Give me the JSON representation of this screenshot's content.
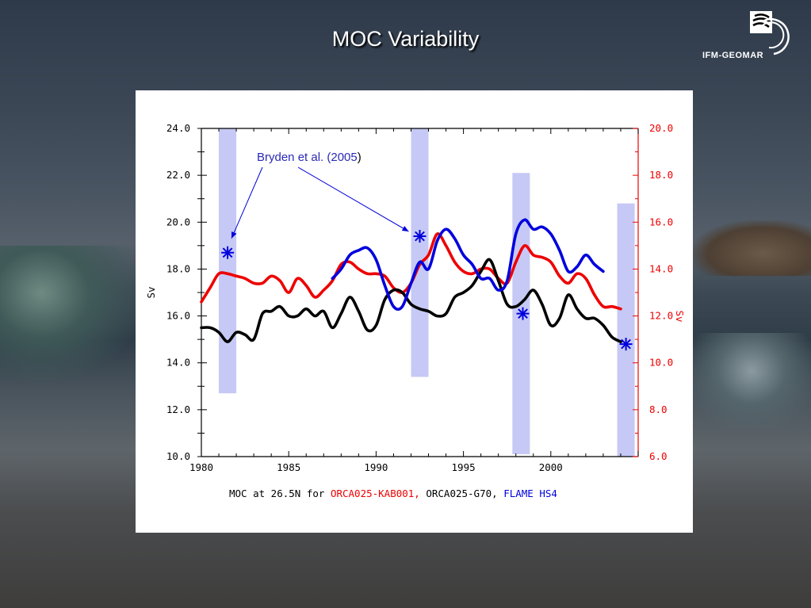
{
  "slide": {
    "title": "MOC Variability"
  },
  "logo": {
    "text": "IFM-GEOMAR"
  },
  "chart_data": {
    "type": "line",
    "title": "",
    "annotation": {
      "text": "Bryden et al. (2005",
      "close": ")"
    },
    "caption": {
      "prefix": "MOC at 26.5N for ",
      "red": "ORCA025-KAB001,",
      "mid": " ORCA025-G70,",
      "blue": " FLAME HS4"
    },
    "xlabel": "",
    "ylabel": "Sv",
    "y2label": "Sv",
    "xlim": [
      1980,
      2005
    ],
    "ylim": [
      10,
      24
    ],
    "y2lim": [
      6,
      20
    ],
    "x_ticks": [
      "1980",
      "1985",
      "1990",
      "1995",
      "2000"
    ],
    "y_ticks": [
      "10.0",
      "12.0",
      "14.0",
      "16.0",
      "18.0",
      "20.0",
      "22.0",
      "24.0"
    ],
    "y2_ticks": [
      "6.0",
      "8.0",
      "10.0",
      "12.0",
      "14.0",
      "16.0",
      "18.0",
      "20.0"
    ],
    "colors": {
      "red": "#ee0000",
      "black": "#000000",
      "blue": "#0000dd",
      "bar": "#c6c9f5",
      "axis2": "#ee0000"
    },
    "bars": [
      {
        "x0": 1981,
        "x1": 1982,
        "y0": 12.7,
        "y1": 24
      },
      {
        "x0": 1992,
        "x1": 1993,
        "y0": 13.4,
        "y1": 24
      },
      {
        "x0": 1997.8,
        "x1": 1998.8,
        "y0": 10.1,
        "y1": 22.1
      },
      {
        "x0": 2003.8,
        "x1": 2004.8,
        "y0": 10,
        "y1": 20.8
      }
    ],
    "markers": [
      {
        "x": 1981.5,
        "y": 18.7
      },
      {
        "x": 1992.5,
        "y": 19.4
      },
      {
        "x": 1998.4,
        "y": 16.1
      },
      {
        "x": 2004.3,
        "y": 14.8
      }
    ],
    "series": [
      {
        "axis": "right",
        "color": "red",
        "x": [
          1980,
          1980.5,
          1981,
          1981.5,
          1982,
          1982.5,
          1983,
          1983.5,
          1984,
          1984.5,
          1985,
          1985.5,
          1986,
          1986.5,
          1987,
          1987.5,
          1988,
          1988.5,
          1989,
          1989.5,
          1990,
          1990.5,
          1991,
          1991.5,
          1992,
          1992.5,
          1993,
          1993.5,
          1994,
          1994.5,
          1995,
          1995.5,
          1996,
          1996.5,
          1997,
          1997.5,
          1998,
          1998.5,
          1999,
          1999.5,
          2000,
          2000.5,
          2001,
          2001.5,
          2002,
          2002.5,
          2003,
          2003.5,
          2004
        ],
        "values": [
          12.6,
          13.2,
          13.8,
          13.8,
          13.7,
          13.6,
          13.4,
          13.4,
          13.7,
          13.5,
          13.0,
          13.6,
          13.3,
          12.8,
          13.1,
          13.5,
          14.2,
          14.3,
          14.0,
          13.8,
          13.8,
          13.7,
          13.2,
          13.0,
          13.4,
          14.2,
          14.6,
          15.5,
          15.0,
          14.3,
          13.9,
          13.8,
          14.0,
          14.0,
          13.6,
          13.4,
          14.3,
          15.0,
          14.6,
          14.5,
          14.3,
          13.7,
          13.4,
          13.8,
          13.6,
          12.9,
          12.4,
          12.4,
          12.3
        ]
      },
      {
        "axis": "left",
        "color": "black",
        "x": [
          1980,
          1980.5,
          1981,
          1981.5,
          1982,
          1982.5,
          1983,
          1983.5,
          1984,
          1984.5,
          1985,
          1985.5,
          1986,
          1986.5,
          1987,
          1987.5,
          1988,
          1988.5,
          1989,
          1989.5,
          1990,
          1990.5,
          1991,
          1991.5,
          1992,
          1992.5,
          1993,
          1993.5,
          1994,
          1994.5,
          1995,
          1995.5,
          1996,
          1996.5,
          1997,
          1997.5,
          1998,
          1998.5,
          1999,
          1999.5,
          2000,
          2000.5,
          2001,
          2001.5,
          2002,
          2002.5,
          2003,
          2003.5,
          2004
        ],
        "values": [
          15.5,
          15.5,
          15.3,
          14.9,
          15.3,
          15.2,
          15.0,
          16.1,
          16.2,
          16.4,
          16.0,
          16.0,
          16.3,
          16.0,
          16.2,
          15.5,
          16.1,
          16.8,
          16.2,
          15.4,
          15.6,
          16.7,
          17.1,
          17.0,
          16.5,
          16.3,
          16.2,
          16.0,
          16.1,
          16.8,
          17.0,
          17.3,
          17.9,
          18.4,
          17.5,
          16.5,
          16.4,
          16.7,
          17.1,
          16.5,
          15.6,
          15.9,
          16.9,
          16.3,
          15.9,
          15.9,
          15.6,
          15.1,
          14.9
        ]
      },
      {
        "axis": "left",
        "color": "blue",
        "x": [
          1987.5,
          1988,
          1988.5,
          1989,
          1989.5,
          1990,
          1990.5,
          1991,
          1991.5,
          1992,
          1992.5,
          1993,
          1993.5,
          1994,
          1994.5,
          1995,
          1995.5,
          1996,
          1996.5,
          1997,
          1997.5,
          1998,
          1998.5,
          1999,
          1999.5,
          2000,
          2000.5,
          2001,
          2001.5,
          2002,
          2002.5,
          2003
        ],
        "values": [
          17.6,
          18.0,
          18.6,
          18.8,
          18.9,
          18.4,
          17.3,
          16.4,
          16.4,
          17.4,
          18.3,
          18.0,
          19.2,
          19.7,
          19.3,
          18.6,
          18.2,
          17.6,
          17.6,
          17.1,
          17.5,
          19.5,
          20.1,
          19.7,
          19.8,
          19.5,
          18.8,
          17.9,
          18.1,
          18.6,
          18.2,
          17.9
        ]
      }
    ]
  }
}
